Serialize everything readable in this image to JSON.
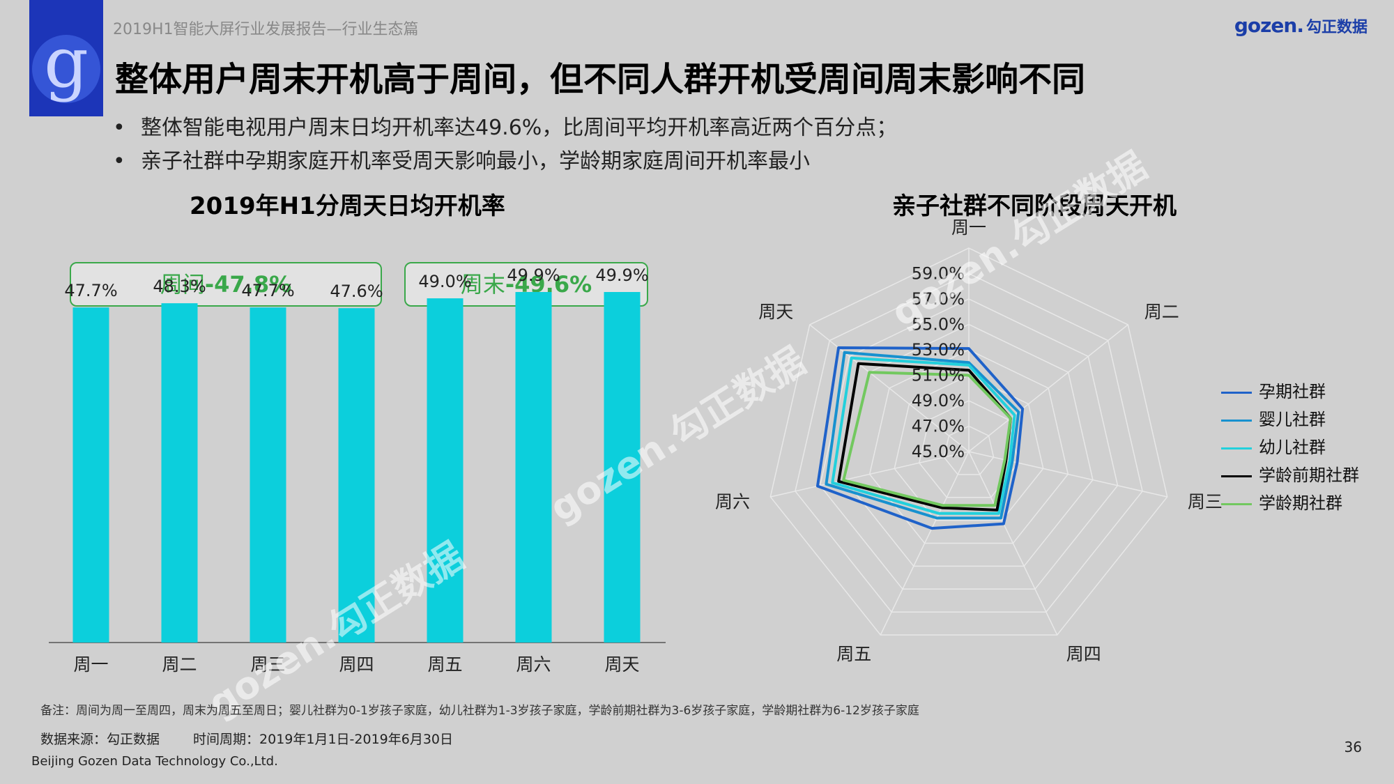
{
  "header": {
    "report_title": "2019H1智能大屏行业发展报告—行业生态篇",
    "brand_en": "gozen.",
    "brand_cn": "勾正数据",
    "logo_letter": "g"
  },
  "main_title": "整体用户周末开机高于周间，但不同人群开机受周间周末影响不同",
  "bullets": [
    "整体智能电视用户周末日均开机率达49.6%，比周间平均开机率高近两个百分点；",
    "亲子社群中孕期家庭开机率受周天影响最小，学龄期家庭周间开机率最小"
  ],
  "bullet_marker": "•",
  "pills": {
    "weekday_label": "周间",
    "weekday_value": "-47.8%",
    "weekend_label": "周末",
    "weekend_value": "-49.6%"
  },
  "watermark_text": "gozen.勾正数据",
  "colors": {
    "bar": "#0ccfdc",
    "pill_green": "#3aa84a",
    "grid": "#e8e8e8"
  },
  "chart_data": [
    {
      "type": "bar",
      "title": "2019年H1分周天日均开机率",
      "categories": [
        "周一",
        "周二",
        "周三",
        "周四",
        "周五",
        "周六",
        "周天"
      ],
      "values": [
        47.7,
        48.3,
        47.7,
        47.6,
        49.0,
        49.9,
        49.9
      ],
      "value_labels": [
        "47.7%",
        "48.3%",
        "47.7%",
        "47.6%",
        "49.0%",
        "49.9%",
        "49.9%"
      ],
      "xlabel": "",
      "ylabel": "",
      "ylim": [
        0,
        50
      ]
    },
    {
      "type": "radar",
      "title": "亲子社群不同阶段周天开机",
      "axes": [
        "周一",
        "周二",
        "周三",
        "周四",
        "周五",
        "周六",
        "周天"
      ],
      "rlim": [
        45,
        61
      ],
      "r_ticks": [
        "45.0%",
        "47.0%",
        "49.0%",
        "51.0%",
        "53.0%",
        "55.0%",
        "57.0%",
        "59.0%"
      ],
      "r_tick_values": [
        45,
        47,
        49,
        51,
        53,
        55,
        57,
        59
      ],
      "legend_position": "right",
      "series": [
        {
          "name": "孕期社群",
          "color": "#1f62c9",
          "values": [
            53.1,
            50.4,
            48.9,
            51.3,
            51.7,
            57.2,
            58.1
          ]
        },
        {
          "name": "婴儿社群",
          "color": "#1791cf",
          "values": [
            52.0,
            50.0,
            48.5,
            50.8,
            50.8,
            56.5,
            57.5
          ]
        },
        {
          "name": "幼儿社群",
          "color": "#22d0dc",
          "values": [
            51.8,
            49.6,
            48.3,
            50.4,
            50.4,
            56.0,
            56.8
          ]
        },
        {
          "name": "学龄前期社群",
          "color": "#000000",
          "values": [
            51.4,
            49.2,
            48.0,
            50.1,
            49.9,
            55.5,
            56.1
          ]
        },
        {
          "name": "学龄期社群",
          "color": "#72c85f",
          "values": [
            51.0,
            49.2,
            47.9,
            49.7,
            49.7,
            55.1,
            55.0
          ]
        }
      ]
    }
  ],
  "footer": {
    "note": "备注：周间为周一至周四，周末为周五至周日；婴儿社群为0-1岁孩子家庭，幼儿社群为1-3岁孩子家庭，学龄前期社群为3-6岁孩子家庭，学龄期社群为6-12岁孩子家庭",
    "source": "数据来源：勾正数据",
    "period": "时间周期：2019年1月1日-2019年6月30日",
    "company": "Beijing Gozen Data Technology Co.,Ltd.",
    "page_number": "36"
  }
}
